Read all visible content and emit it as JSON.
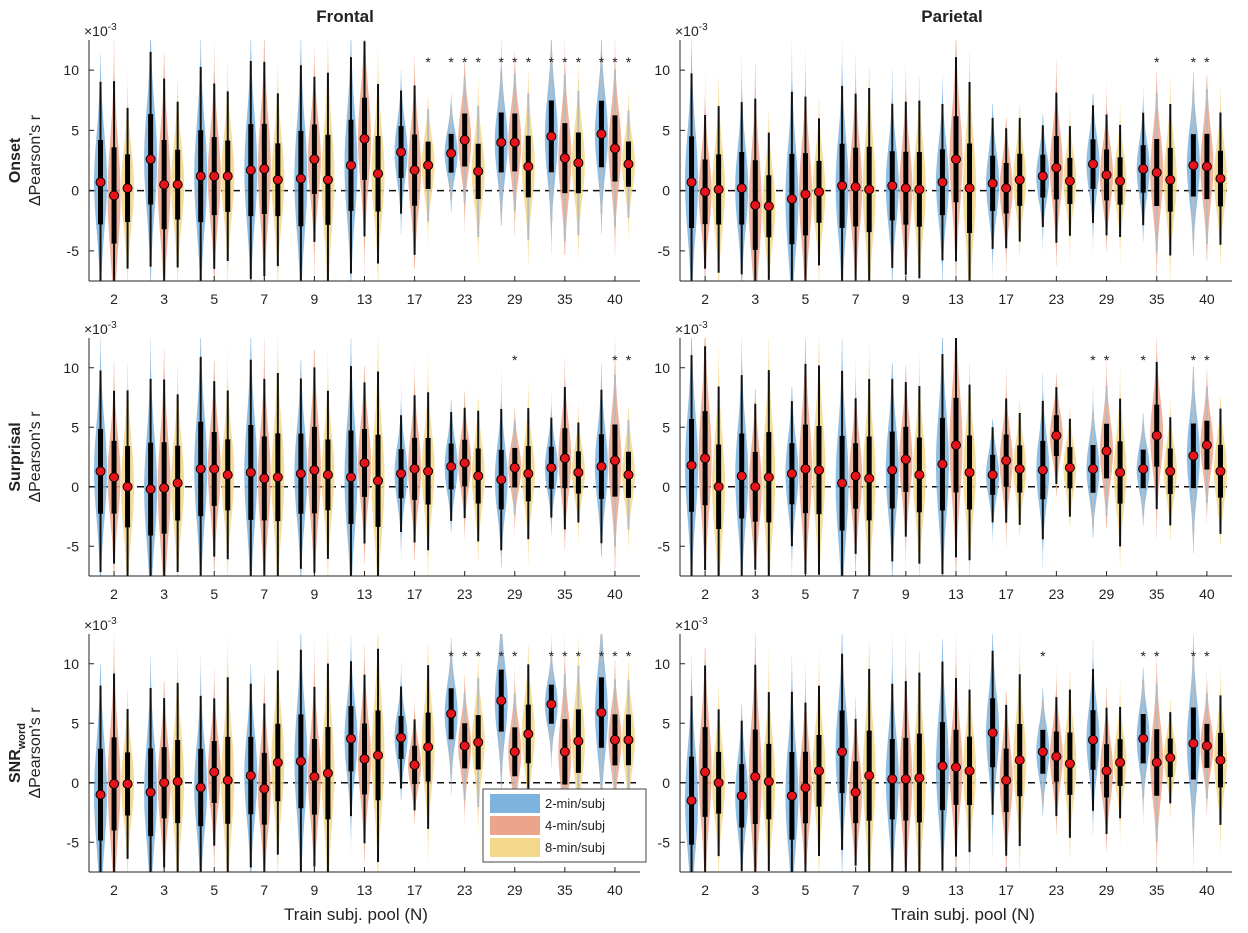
{
  "chart_data": {
    "type": "violin",
    "columns": [
      "Frontal",
      "Parietal"
    ],
    "rows": [
      {
        "label": "Onset",
        "subscript": ""
      },
      {
        "label": "Surprisal",
        "subscript": ""
      },
      {
        "label": "SNR",
        "subscript": "word"
      }
    ],
    "ylabel": "ΔPearson's r",
    "exponent_base": "×10",
    "exponent_power": "-3",
    "xlabel": "Train subj. pool (N)",
    "x_ticks": [
      "2",
      "3",
      "5",
      "7",
      "9",
      "13",
      "17",
      "23",
      "29",
      "35",
      "40"
    ],
    "y_ticks": [
      "-5",
      "0",
      "5",
      "10"
    ],
    "ylim": [
      -7.5,
      12.5
    ],
    "series": [
      {
        "name": "2-min/subj",
        "color": "#7eb3de"
      },
      {
        "name": "4-min/subj",
        "color": "#eba58c"
      },
      {
        "name": "8-min/subj",
        "color": "#f3d88b"
      }
    ],
    "significance_symbol": "*",
    "panels": [
      {
        "row": "Onset",
        "column": "Frontal",
        "medians": [
          [
            0.7,
            -0.4,
            0.2
          ],
          [
            2.6,
            0.5,
            0.5
          ],
          [
            1.2,
            1.2,
            1.2
          ],
          [
            1.7,
            1.8,
            0.9
          ],
          [
            1.0,
            2.6,
            0.9
          ],
          [
            2.1,
            4.3,
            1.4
          ],
          [
            3.2,
            1.7,
            2.1
          ],
          [
            3.1,
            4.2,
            1.6
          ],
          [
            4.0,
            4.0,
            2.0
          ],
          [
            4.5,
            2.7,
            2.3
          ],
          [
            4.7,
            3.5,
            2.2
          ]
        ],
        "significant": [
          [
            false,
            false,
            false
          ],
          [
            false,
            false,
            false
          ],
          [
            false,
            false,
            false
          ],
          [
            false,
            false,
            false
          ],
          [
            false,
            false,
            false
          ],
          [
            false,
            false,
            false
          ],
          [
            false,
            false,
            true
          ],
          [
            true,
            true,
            true
          ],
          [
            true,
            true,
            true
          ],
          [
            true,
            true,
            true
          ],
          [
            true,
            true,
            true
          ]
        ]
      },
      {
        "row": "Onset",
        "column": "Parietal",
        "medians": [
          [
            0.7,
            -0.1,
            0.1
          ],
          [
            0.2,
            -1.2,
            -1.3
          ],
          [
            -0.7,
            -0.3,
            -0.1
          ],
          [
            0.4,
            0.3,
            0.1
          ],
          [
            0.4,
            0.2,
            0.1
          ],
          [
            0.7,
            2.6,
            0.2
          ],
          [
            0.6,
            0.2,
            0.9
          ],
          [
            1.2,
            1.9,
            0.8
          ],
          [
            2.2,
            1.3,
            0.8
          ],
          [
            1.8,
            1.5,
            0.9
          ],
          [
            2.1,
            2.0,
            1.0
          ]
        ],
        "significant": [
          [
            false,
            false,
            false
          ],
          [
            false,
            false,
            false
          ],
          [
            false,
            false,
            false
          ],
          [
            false,
            false,
            false
          ],
          [
            false,
            false,
            false
          ],
          [
            false,
            false,
            false
          ],
          [
            false,
            false,
            false
          ],
          [
            false,
            false,
            false
          ],
          [
            false,
            false,
            false
          ],
          [
            false,
            true,
            false
          ],
          [
            true,
            true,
            false
          ]
        ]
      },
      {
        "row": "Surprisal",
        "column": "Frontal",
        "medians": [
          [
            1.3,
            0.8,
            0.0
          ],
          [
            -0.2,
            -0.1,
            0.3
          ],
          [
            1.5,
            1.5,
            1.0
          ],
          [
            1.2,
            0.7,
            0.8
          ],
          [
            1.1,
            1.4,
            1.0
          ],
          [
            0.8,
            2.0,
            0.5
          ],
          [
            1.1,
            1.5,
            1.3
          ],
          [
            1.7,
            2.0,
            0.9
          ],
          [
            0.6,
            1.6,
            1.1
          ],
          [
            1.6,
            2.4,
            1.2
          ],
          [
            1.7,
            2.2,
            1.0
          ]
        ],
        "significant": [
          [
            false,
            false,
            false
          ],
          [
            false,
            false,
            false
          ],
          [
            false,
            false,
            false
          ],
          [
            false,
            false,
            false
          ],
          [
            false,
            false,
            false
          ],
          [
            false,
            false,
            false
          ],
          [
            false,
            false,
            false
          ],
          [
            false,
            false,
            false
          ],
          [
            false,
            true,
            false
          ],
          [
            false,
            false,
            false
          ],
          [
            false,
            true,
            true
          ]
        ]
      },
      {
        "row": "Surprisal",
        "column": "Parietal",
        "medians": [
          [
            1.8,
            2.4,
            0.0
          ],
          [
            0.9,
            0.0,
            0.8
          ],
          [
            1.1,
            1.5,
            1.4
          ],
          [
            0.3,
            0.9,
            0.7
          ],
          [
            1.4,
            2.3,
            1.0
          ],
          [
            1.9,
            3.5,
            1.2
          ],
          [
            1.0,
            2.2,
            1.5
          ],
          [
            1.4,
            4.3,
            1.6
          ],
          [
            1.5,
            3.0,
            1.2
          ],
          [
            1.5,
            4.3,
            1.3
          ],
          [
            2.6,
            3.5,
            1.3
          ]
        ],
        "significant": [
          [
            false,
            false,
            false
          ],
          [
            false,
            false,
            false
          ],
          [
            false,
            false,
            false
          ],
          [
            false,
            false,
            false
          ],
          [
            false,
            false,
            false
          ],
          [
            false,
            false,
            false
          ],
          [
            false,
            false,
            false
          ],
          [
            false,
            false,
            false
          ],
          [
            true,
            true,
            false
          ],
          [
            true,
            false,
            false
          ],
          [
            true,
            true,
            false
          ]
        ]
      },
      {
        "row": "SNR_word",
        "column": "Frontal",
        "medians": [
          [
            -1.0,
            -0.1,
            -0.1
          ],
          [
            -0.8,
            0.0,
            0.1
          ],
          [
            -0.4,
            0.9,
            0.2
          ],
          [
            0.6,
            -0.5,
            1.7
          ],
          [
            1.8,
            0.5,
            0.8
          ],
          [
            3.7,
            2.0,
            2.3
          ],
          [
            3.8,
            1.5,
            3.0
          ],
          [
            5.8,
            3.1,
            3.4
          ],
          [
            6.9,
            2.6,
            4.1
          ],
          [
            6.6,
            2.6,
            3.5
          ],
          [
            5.9,
            3.6,
            3.6
          ]
        ],
        "significant": [
          [
            false,
            false,
            false
          ],
          [
            false,
            false,
            false
          ],
          [
            false,
            false,
            false
          ],
          [
            false,
            false,
            false
          ],
          [
            false,
            false,
            false
          ],
          [
            false,
            false,
            false
          ],
          [
            false,
            false,
            false
          ],
          [
            true,
            true,
            true
          ],
          [
            true,
            true,
            false
          ],
          [
            true,
            true,
            true
          ],
          [
            true,
            true,
            true
          ]
        ]
      },
      {
        "row": "SNR_word",
        "column": "Parietal",
        "medians": [
          [
            -1.5,
            0.9,
            0.0
          ],
          [
            -1.1,
            0.5,
            0.1
          ],
          [
            -1.1,
            -0.4,
            1.0
          ],
          [
            2.6,
            -0.8,
            0.6
          ],
          [
            0.3,
            0.3,
            0.4
          ],
          [
            1.4,
            1.3,
            1.0
          ],
          [
            4.2,
            0.2,
            1.9
          ],
          [
            2.6,
            2.2,
            1.6
          ],
          [
            3.6,
            1.0,
            1.7
          ],
          [
            3.7,
            1.7,
            2.1
          ],
          [
            3.3,
            3.1,
            1.9
          ]
        ],
        "significant": [
          [
            false,
            false,
            false
          ],
          [
            false,
            false,
            false
          ],
          [
            false,
            false,
            false
          ],
          [
            false,
            false,
            false
          ],
          [
            false,
            false,
            false
          ],
          [
            false,
            false,
            false
          ],
          [
            false,
            false,
            false
          ],
          [
            true,
            false,
            false
          ],
          [
            false,
            false,
            false
          ],
          [
            true,
            true,
            false
          ],
          [
            true,
            true,
            false
          ]
        ]
      }
    ]
  }
}
